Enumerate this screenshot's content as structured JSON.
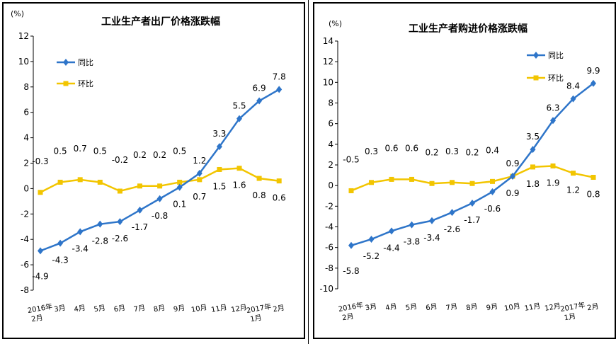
{
  "colors": {
    "yoy": "#2e75c9",
    "mom": "#f2c500"
  },
  "charts": [
    {
      "title": "工业生产者出厂价格涨跌幅",
      "unit": "(%)",
      "ylim": [
        -8,
        12
      ],
      "yticks": [
        -8,
        -6,
        -4,
        -2,
        0,
        2,
        4,
        6,
        8,
        10,
        12
      ],
      "categories": [
        "2016年\n2月",
        "3月",
        "4月",
        "5月",
        "6月",
        "7月",
        "8月",
        "9月",
        "10月",
        "11月",
        "12月",
        "2017年\n1月",
        "2月"
      ],
      "legend": [
        "同比",
        "环比"
      ],
      "yoy": [
        -4.9,
        -4.3,
        -3.4,
        -2.8,
        -2.6,
        -1.7,
        -0.8,
        0.1,
        1.2,
        3.3,
        5.5,
        6.9,
        7.8
      ],
      "mom": [
        -0.3,
        0.5,
        0.7,
        0.5,
        -0.2,
        0.2,
        0.2,
        0.5,
        0.7,
        1.5,
        1.6,
        0.8,
        0.6
      ],
      "yoy_labels": [
        "-4.9",
        "-4.3",
        "-3.4",
        "-2.8",
        "-2.6",
        "-1.7",
        "-0.8",
        "0.1",
        "1.2",
        "3.3",
        "5.5",
        "6.9",
        "7.8"
      ],
      "mom_labels": [
        "-0.3",
        "0.5",
        "0.7",
        "0.5",
        "-0.2",
        "0.2",
        "0.2",
        "0.5",
        "0.7",
        "1.5",
        "1.6",
        "0.8",
        "0.6"
      ]
    },
    {
      "title": "工业生产者购进价格涨跌幅",
      "unit": "(%)",
      "ylim": [
        -10,
        14
      ],
      "yticks": [
        -10,
        -8,
        -6,
        -4,
        -2,
        0,
        2,
        4,
        6,
        8,
        10,
        12,
        14
      ],
      "categories": [
        "2016年\n2月",
        "3月",
        "4月",
        "5月",
        "6月",
        "7月",
        "8月",
        "9月",
        "10月",
        "11月",
        "12月",
        "2017年\n1月",
        "2月"
      ],
      "legend": [
        "同比",
        "环比"
      ],
      "yoy": [
        -5.8,
        -5.2,
        -4.4,
        -3.8,
        -3.4,
        -2.6,
        -1.7,
        -0.6,
        0.9,
        3.5,
        6.3,
        8.4,
        9.9
      ],
      "mom": [
        -0.5,
        0.3,
        0.6,
        0.6,
        0.2,
        0.3,
        0.2,
        0.4,
        0.9,
        1.8,
        1.9,
        1.2,
        0.8
      ],
      "yoy_labels": [
        "-5.8",
        "-5.2",
        "-4.4",
        "-3.8",
        "-3.4",
        "-2.6",
        "-1.7",
        "-0.6",
        "0.9",
        "3.5",
        "6.3",
        "8.4",
        "9.9"
      ],
      "mom_labels": [
        "-0.5",
        "0.3",
        "0.6",
        "0.6",
        "0.2",
        "0.3",
        "0.2",
        "0.4",
        "0.9",
        "1.8",
        "1.9",
        "1.2",
        "0.8"
      ]
    }
  ],
  "chart_data": [
    {
      "type": "line",
      "title": "工业生产者出厂价格涨跌幅",
      "ylabel": "(%)",
      "ylim": [
        -8,
        12
      ],
      "grid": false,
      "legend_position": "top-left",
      "categories": [
        "2016年2月",
        "3月",
        "4月",
        "5月",
        "6月",
        "7月",
        "8月",
        "9月",
        "10月",
        "11月",
        "12月",
        "2017年1月",
        "2月"
      ],
      "series": [
        {
          "name": "同比",
          "values": [
            -4.9,
            -4.3,
            -3.4,
            -2.8,
            -2.6,
            -1.7,
            -0.8,
            0.1,
            1.2,
            3.3,
            5.5,
            6.9,
            7.8
          ]
        },
        {
          "name": "环比",
          "values": [
            -0.3,
            0.5,
            0.7,
            0.5,
            -0.2,
            0.2,
            0.2,
            0.5,
            0.7,
            1.5,
            1.6,
            0.8,
            0.6
          ]
        }
      ]
    },
    {
      "type": "line",
      "title": "工业生产者购进价格涨跌幅",
      "ylabel": "(%)",
      "ylim": [
        -10,
        14
      ],
      "grid": false,
      "legend_position": "top-right",
      "categories": [
        "2016年2月",
        "3月",
        "4月",
        "5月",
        "6月",
        "7月",
        "8月",
        "9月",
        "10月",
        "11月",
        "12月",
        "2017年1月",
        "2月"
      ],
      "series": [
        {
          "name": "同比",
          "values": [
            -5.8,
            -5.2,
            -4.4,
            -3.8,
            -3.4,
            -2.6,
            -1.7,
            -0.6,
            0.9,
            3.5,
            6.3,
            8.4,
            9.9
          ]
        },
        {
          "name": "环比",
          "values": [
            -0.5,
            0.3,
            0.6,
            0.6,
            0.2,
            0.3,
            0.2,
            0.4,
            0.9,
            1.8,
            1.9,
            1.2,
            0.8
          ]
        }
      ]
    }
  ]
}
